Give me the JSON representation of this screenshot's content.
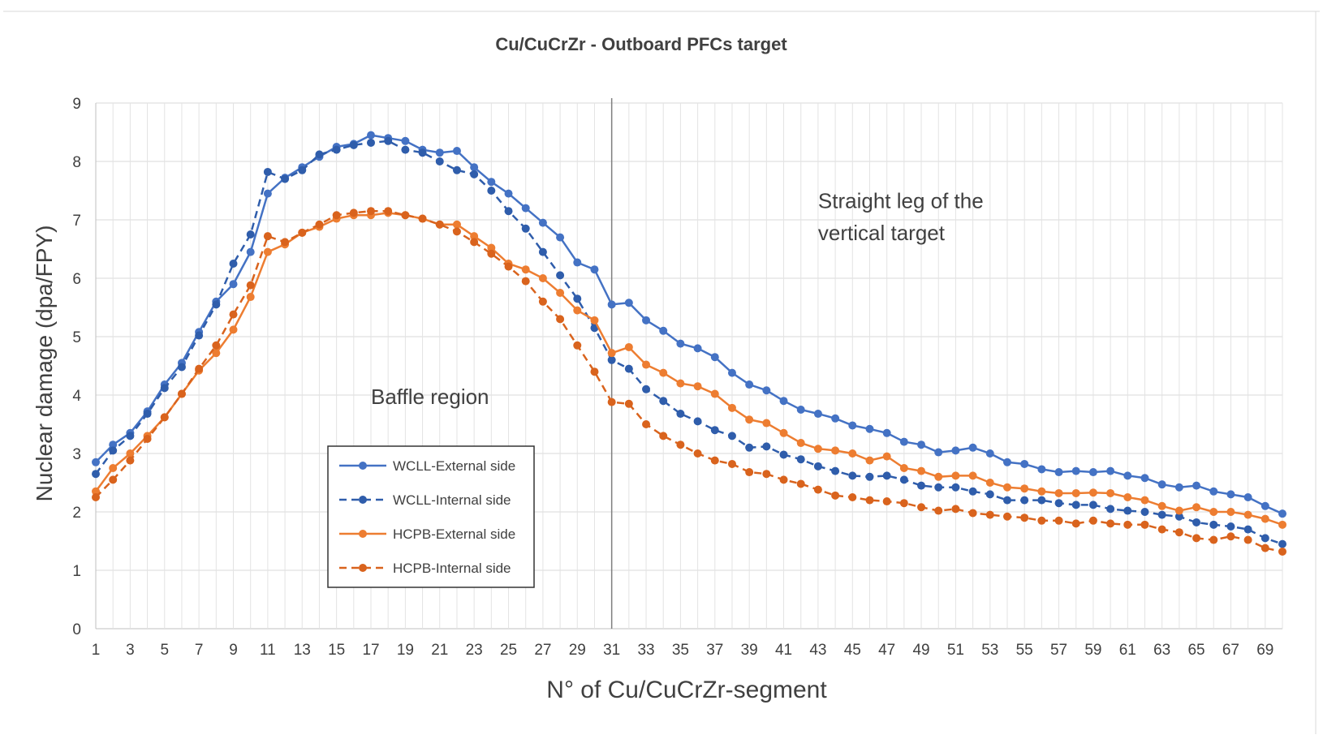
{
  "chart_data": {
    "type": "line",
    "title": "Cu/CuCrZr - Outboard PFCs target",
    "xlabel": "N° of Cu/CuCrZr-segment",
    "ylabel": "Nuclear damage (dpa/FPY)",
    "xlim": [
      1,
      70
    ],
    "ylim": [
      0,
      9
    ],
    "yticks": [
      0,
      1,
      2,
      3,
      4,
      5,
      6,
      7,
      8,
      9
    ],
    "xticks": [
      1,
      3,
      5,
      7,
      9,
      11,
      13,
      15,
      17,
      19,
      21,
      23,
      25,
      27,
      29,
      31,
      33,
      35,
      37,
      39,
      41,
      43,
      45,
      47,
      49,
      51,
      53,
      55,
      57,
      59,
      61,
      63,
      65,
      67,
      69
    ],
    "grid": true,
    "legend_position": "lower-center-left",
    "annotations": [
      {
        "text": "Straight leg of the",
        "x": 43,
        "y": 7.2
      },
      {
        "text": "vertical target",
        "x": 43,
        "y": 6.65
      },
      {
        "text": "Baffle region",
        "x": 17,
        "y": 3.85
      }
    ],
    "divider_x": 31,
    "series": [
      {
        "name": "WCLL-External side",
        "color": "#4472c4",
        "dash": false,
        "values": [
          2.85,
          3.15,
          3.35,
          3.72,
          4.18,
          4.55,
          5.08,
          5.6,
          5.9,
          6.45,
          7.45,
          7.72,
          7.9,
          8.08,
          8.25,
          8.3,
          8.45,
          8.4,
          8.35,
          8.2,
          8.15,
          8.18,
          7.9,
          7.65,
          7.45,
          7.2,
          6.95,
          6.7,
          6.27,
          6.15,
          5.55,
          5.58,
          5.28,
          5.1,
          4.88,
          4.8,
          4.65,
          4.38,
          4.18,
          4.08,
          3.9,
          3.75,
          3.68,
          3.6,
          3.48,
          3.42,
          3.35,
          3.2,
          3.15,
          3.02,
          3.05,
          3.1,
          3.0,
          2.85,
          2.82,
          2.73,
          2.68,
          2.7,
          2.68,
          2.7,
          2.62,
          2.58,
          2.47,
          2.42,
          2.45,
          2.35,
          2.3,
          2.25,
          2.1,
          1.97
        ]
      },
      {
        "name": "WCLL-Internal side",
        "color": "#2f5dab",
        "dash": true,
        "values": [
          2.65,
          3.05,
          3.3,
          3.68,
          4.12,
          4.48,
          5.02,
          5.55,
          6.25,
          6.75,
          7.82,
          7.7,
          7.85,
          8.12,
          8.2,
          8.28,
          8.32,
          8.35,
          8.2,
          8.15,
          8.0,
          7.85,
          7.78,
          7.5,
          7.15,
          6.85,
          6.45,
          6.05,
          5.65,
          5.15,
          4.6,
          4.45,
          4.1,
          3.9,
          3.68,
          3.55,
          3.4,
          3.3,
          3.1,
          3.12,
          2.98,
          2.9,
          2.78,
          2.7,
          2.62,
          2.6,
          2.62,
          2.55,
          2.45,
          2.42,
          2.42,
          2.35,
          2.3,
          2.2,
          2.2,
          2.2,
          2.15,
          2.12,
          2.12,
          2.05,
          2.02,
          2.0,
          1.95,
          1.92,
          1.82,
          1.78,
          1.75,
          1.7,
          1.55,
          1.45
        ]
      },
      {
        "name": "HCPB-External side",
        "color": "#ed7d31",
        "dash": false,
        "values": [
          2.35,
          2.75,
          3.0,
          3.3,
          3.62,
          4.02,
          4.42,
          4.72,
          5.12,
          5.68,
          6.45,
          6.58,
          6.78,
          6.88,
          7.02,
          7.08,
          7.08,
          7.12,
          7.08,
          7.02,
          6.92,
          6.92,
          6.72,
          6.52,
          6.25,
          6.15,
          6.0,
          5.75,
          5.45,
          5.28,
          4.72,
          4.82,
          4.52,
          4.38,
          4.2,
          4.15,
          4.02,
          3.78,
          3.58,
          3.52,
          3.35,
          3.18,
          3.08,
          3.05,
          3.0,
          2.88,
          2.95,
          2.75,
          2.7,
          2.6,
          2.62,
          2.62,
          2.5,
          2.42,
          2.4,
          2.35,
          2.32,
          2.32,
          2.33,
          2.32,
          2.25,
          2.2,
          2.1,
          2.02,
          2.08,
          2.0,
          2.0,
          1.95,
          1.88,
          1.78
        ]
      },
      {
        "name": "HCPB-Internal side",
        "color": "#d9631d",
        "dash": true,
        "values": [
          2.25,
          2.55,
          2.88,
          3.25,
          3.62,
          4.02,
          4.45,
          4.85,
          5.38,
          5.88,
          6.72,
          6.62,
          6.78,
          6.92,
          7.08,
          7.12,
          7.15,
          7.15,
          7.08,
          7.02,
          6.92,
          6.8,
          6.62,
          6.42,
          6.2,
          5.95,
          5.6,
          5.3,
          4.85,
          4.4,
          3.88,
          3.85,
          3.5,
          3.3,
          3.15,
          3.0,
          2.88,
          2.82,
          2.68,
          2.65,
          2.55,
          2.48,
          2.38,
          2.28,
          2.25,
          2.2,
          2.18,
          2.15,
          2.08,
          2.02,
          2.05,
          1.98,
          1.95,
          1.92,
          1.9,
          1.85,
          1.85,
          1.8,
          1.85,
          1.8,
          1.78,
          1.78,
          1.7,
          1.65,
          1.55,
          1.52,
          1.58,
          1.52,
          1.38,
          1.32
        ]
      }
    ]
  }
}
